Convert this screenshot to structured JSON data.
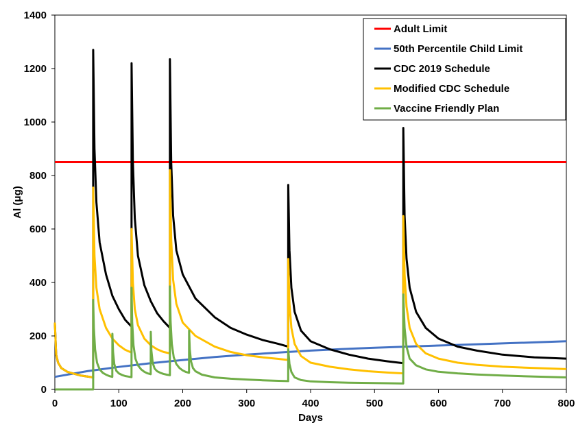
{
  "chart_data": {
    "type": "line",
    "title": "",
    "xlabel": "Days",
    "ylabel": "Al (μg)",
    "xlim": [
      0,
      800
    ],
    "ylim": [
      0,
      1400
    ],
    "x_ticks": [
      0,
      100,
      200,
      300,
      400,
      500,
      600,
      700,
      800
    ],
    "y_ticks": [
      0,
      200,
      400,
      600,
      800,
      1000,
      1200,
      1400
    ],
    "grid": false,
    "legend_position": "top-right",
    "series": [
      {
        "name": "Adult Limit",
        "color": "#ff0000",
        "x": [
          0,
          800
        ],
        "y": [
          850,
          850
        ]
      },
      {
        "name": "50th Percentile Child Limit",
        "color": "#4472c4",
        "x": [
          0,
          50,
          100,
          150,
          200,
          250,
          300,
          350,
          400,
          450,
          500,
          550,
          600,
          650,
          700,
          750,
          800
        ],
        "y": [
          47,
          68,
          84,
          98,
          110,
          121,
          130,
          138,
          145,
          151,
          156,
          160,
          164,
          168,
          172,
          176,
          180
        ]
      },
      {
        "name": "CDC 2019 Schedule",
        "color": "#000000",
        "x": [
          0,
          2,
          5,
          10,
          20,
          40,
          59.9,
          60,
          62,
          65,
          70,
          80,
          90,
          100,
          110,
          119.9,
          120,
          122,
          125,
          130,
          140,
          150,
          160,
          170,
          179.9,
          180,
          182,
          185,
          190,
          200,
          220,
          250,
          275,
          300,
          325,
          350,
          364.9,
          365,
          367,
          370,
          375,
          385,
          400,
          430,
          460,
          490,
          520,
          544.9,
          545,
          547,
          550,
          555,
          565,
          580,
          600,
          630,
          660,
          700,
          750,
          800
        ],
        "y": [
          250,
          130,
          100,
          80,
          65,
          52,
          45,
          1270,
          900,
          700,
          550,
          430,
          350,
          300,
          260,
          235,
          1220,
          850,
          640,
          500,
          390,
          330,
          285,
          255,
          230,
          1235,
          850,
          650,
          520,
          430,
          340,
          270,
          230,
          205,
          185,
          170,
          160,
          765,
          520,
          380,
          290,
          220,
          180,
          150,
          130,
          115,
          105,
          98,
          978,
          650,
          490,
          380,
          290,
          230,
          190,
          160,
          145,
          130,
          120,
          115
        ]
      },
      {
        "name": "Modified CDC Schedule",
        "color": "#ffc000",
        "x": [
          0,
          2,
          5,
          10,
          20,
          40,
          59.9,
          60,
          62,
          65,
          70,
          80,
          90,
          100,
          110,
          119.9,
          120,
          122,
          125,
          130,
          140,
          150,
          160,
          170,
          179.9,
          180,
          182,
          185,
          190,
          200,
          220,
          250,
          275,
          300,
          325,
          350,
          364.9,
          365,
          367,
          370,
          375,
          385,
          400,
          430,
          460,
          490,
          520,
          544.9,
          545,
          547,
          550,
          555,
          565,
          580,
          600,
          630,
          660,
          700,
          750,
          800
        ],
        "y": [
          250,
          130,
          100,
          80,
          65,
          52,
          45,
          755,
          500,
          380,
          300,
          230,
          190,
          165,
          148,
          138,
          600,
          400,
          300,
          240,
          190,
          165,
          150,
          140,
          135,
          820,
          560,
          410,
          320,
          250,
          200,
          160,
          140,
          128,
          120,
          114,
          110,
          488,
          320,
          230,
          170,
          125,
          100,
          85,
          75,
          68,
          63,
          60,
          648,
          430,
          310,
          230,
          170,
          135,
          115,
          100,
          92,
          85,
          80,
          76
        ]
      },
      {
        "name": "Vaccine Friendly Plan",
        "color": "#70ad47",
        "x": [
          0,
          59.9,
          60,
          61,
          63,
          66,
          70,
          75,
          80,
          85,
          89.9,
          90,
          91,
          93,
          96,
          100,
          105,
          110,
          115,
          119.9,
          120,
          121,
          123,
          126,
          130,
          135,
          140,
          145,
          149.9,
          150,
          151,
          153,
          156,
          160,
          165,
          170,
          175,
          179.9,
          180,
          181,
          183,
          186,
          190,
          195,
          200,
          205,
          209.9,
          210,
          211,
          213,
          216,
          220,
          230,
          250,
          275,
          300,
          325,
          350,
          364.9,
          365,
          367,
          370,
          375,
          385,
          400,
          430,
          460,
          490,
          520,
          544.9,
          545,
          547,
          550,
          555,
          565,
          580,
          600,
          630,
          660,
          700,
          750,
          800
        ],
        "y": [
          0,
          0,
          335,
          230,
          150,
          100,
          75,
          62,
          55,
          50,
          47,
          208,
          140,
          95,
          70,
          60,
          54,
          50,
          48,
          46,
          380,
          250,
          165,
          115,
          90,
          75,
          66,
          60,
          57,
          215,
          145,
          100,
          78,
          68,
          62,
          58,
          55,
          53,
          385,
          255,
          170,
          120,
          95,
          80,
          71,
          65,
          62,
          220,
          150,
          105,
          80,
          68,
          55,
          45,
          40,
          37,
          34,
          32,
          31,
          150,
          95,
          65,
          45,
          35,
          30,
          27,
          25,
          24,
          23,
          22,
          355,
          230,
          160,
          115,
          90,
          75,
          66,
          60,
          56,
          52,
          48,
          45
        ]
      }
    ]
  }
}
